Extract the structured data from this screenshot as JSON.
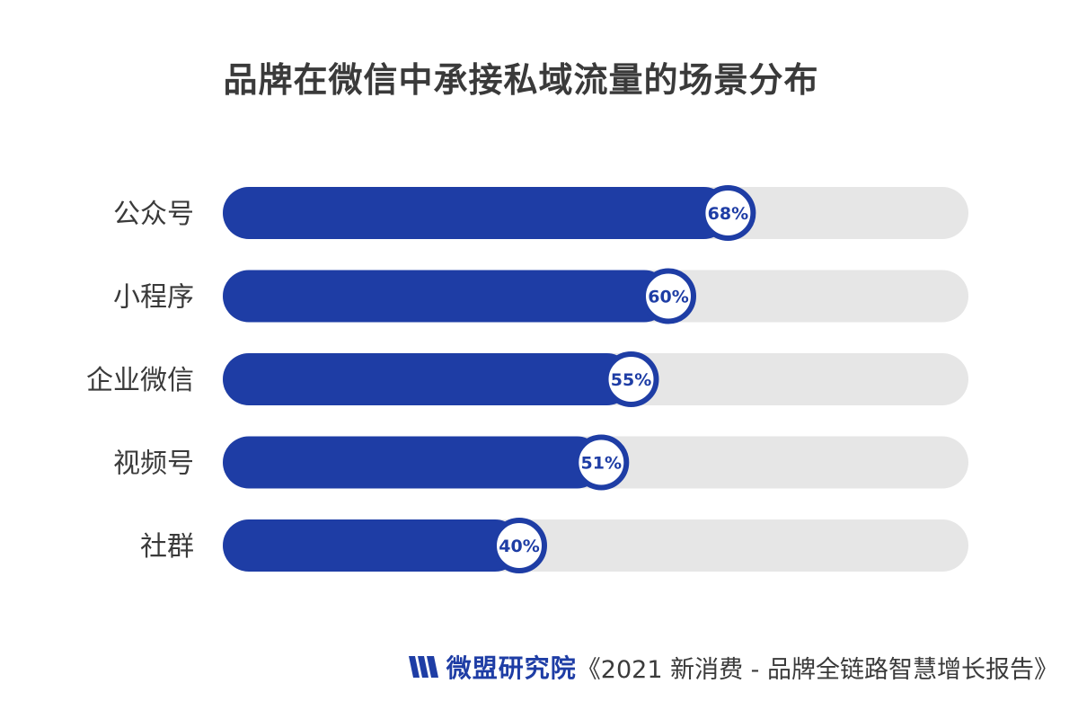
{
  "chart_data": {
    "type": "bar",
    "orientation": "horizontal",
    "title": "品牌在微信中承接私域流量的场景分布",
    "categories": [
      "公众号",
      "小程序",
      "企业微信",
      "视频号",
      "社群"
    ],
    "values": [
      68,
      60,
      55,
      51,
      40
    ],
    "value_labels": [
      "68%",
      "60%",
      "55%",
      "51%",
      "40%"
    ],
    "xlim": [
      0,
      100
    ],
    "grid": false,
    "legend": "none",
    "colors": {
      "bar": "#1e3da5",
      "track": "#e6e6e6",
      "badge_fill": "#ffffff"
    }
  },
  "footer": {
    "brand": "微盟研究院",
    "source": "《2021 新消费 - 品牌全链路智慧增长报告》",
    "logo_icon": "weimob-logo-icon"
  }
}
